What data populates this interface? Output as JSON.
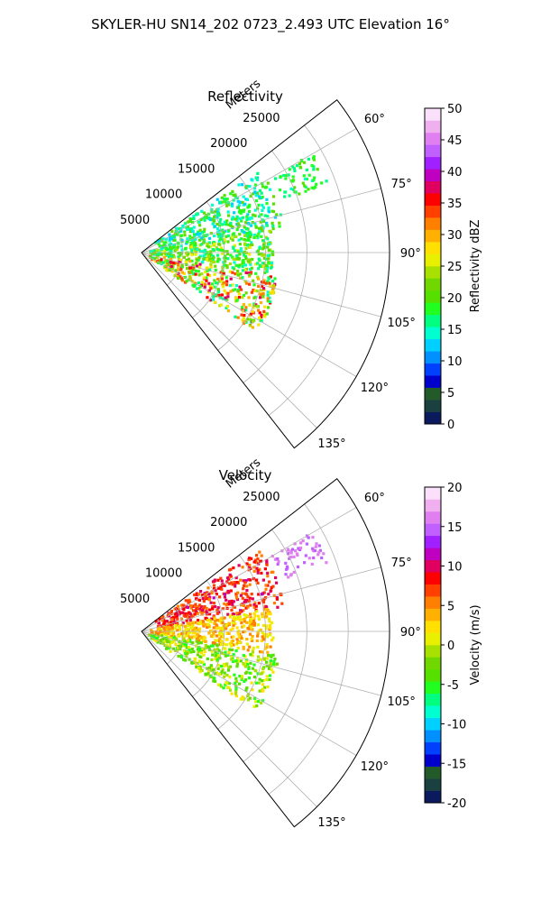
{
  "figure": {
    "title": "SKYLER-HU  SN14_202  0723_2.493 UTC Elevation 16°"
  },
  "chart_data": [
    {
      "type": "polar-sector",
      "title": "Reflectivity",
      "radial_label": "Meters",
      "theta_range_deg": [
        52,
        142
      ],
      "theta_ticks": [
        "60°",
        "75°",
        "90°",
        "105°",
        "120°",
        "135°"
      ],
      "theta_tick_values": [
        60,
        75,
        90,
        105,
        120,
        135
      ],
      "r_ticks": [
        "5000",
        "10000",
        "15000",
        "20000",
        "25000"
      ],
      "r_tick_values": [
        5000,
        10000,
        15000,
        20000,
        25000
      ],
      "r_max": 30000,
      "grid": true,
      "colorbar": {
        "label": "Reflectivity dBZ",
        "min": 0,
        "max": 50,
        "ticks": [
          "0",
          "5",
          "10",
          "15",
          "20",
          "25",
          "30",
          "35",
          "40",
          "45",
          "50"
        ],
        "tick_values": [
          0,
          5,
          10,
          15,
          20,
          25,
          30,
          35,
          40,
          45,
          50
        ],
        "colors": [
          "#0a1a5c",
          "#1a4040",
          "#235a2a",
          "#0000cc",
          "#0040ff",
          "#0090ff",
          "#00d0ff",
          "#00ffd0",
          "#00ff80",
          "#20ff20",
          "#55e000",
          "#70d800",
          "#a8e000",
          "#e8f000",
          "#ffe000",
          "#ffb000",
          "#ff8000",
          "#ff4000",
          "#ff0000",
          "#e00060",
          "#c000c0",
          "#a020ff",
          "#c060ff",
          "#e080f0",
          "#f0b0f0",
          "#fbe0fb"
        ]
      },
      "data_summary": [
        {
          "theta_range": [
            55,
            80
          ],
          "r_range": [
            2000,
            17500
          ],
          "value_range": [
            12,
            22
          ]
        },
        {
          "theta_range": [
            80,
            100
          ],
          "r_range": [
            1000,
            16000
          ],
          "value_range": [
            14,
            26
          ]
        },
        {
          "theta_range": [
            100,
            125
          ],
          "r_range": [
            1000,
            17000
          ],
          "value_range": [
            15,
            38
          ]
        },
        {
          "theta_range": [
            60,
            70
          ],
          "r_range": [
            18000,
            24000
          ],
          "value_range": [
            15,
            20
          ]
        }
      ]
    },
    {
      "type": "polar-sector",
      "title": "Velocity",
      "radial_label": "Meters",
      "theta_range_deg": [
        52,
        142
      ],
      "theta_ticks": [
        "60°",
        "75°",
        "90°",
        "105°",
        "120°",
        "135°"
      ],
      "theta_tick_values": [
        60,
        75,
        90,
        105,
        120,
        135
      ],
      "r_ticks": [
        "5000",
        "10000",
        "15000",
        "20000",
        "25000"
      ],
      "r_tick_values": [
        5000,
        10000,
        15000,
        20000,
        25000
      ],
      "r_max": 30000,
      "grid": true,
      "colorbar": {
        "label": "Velocity (m/s)",
        "min": -20,
        "max": 20,
        "ticks": [
          "-20",
          "-15",
          "-10",
          "-5",
          "0",
          "5",
          "10",
          "15",
          "20"
        ],
        "tick_values": [
          -20,
          -15,
          -10,
          -5,
          0,
          5,
          10,
          15,
          20
        ],
        "colors": [
          "#0a1a5c",
          "#1a4040",
          "#235a2a",
          "#0000cc",
          "#0040ff",
          "#0090ff",
          "#00d0ff",
          "#00ffd0",
          "#00ff80",
          "#20ff20",
          "#55e000",
          "#70d800",
          "#a8e000",
          "#e8f000",
          "#ffe000",
          "#ffb000",
          "#ff8000",
          "#ff4000",
          "#ff0000",
          "#e00060",
          "#c000c0",
          "#a020ff",
          "#c060ff",
          "#e080f0",
          "#f0b0f0",
          "#fbe0fb"
        ]
      },
      "data_summary": [
        {
          "theta_range": [
            55,
            80
          ],
          "r_range": [
            2000,
            17500
          ],
          "value_range": [
            5,
            11
          ]
        },
        {
          "theta_range": [
            80,
            100
          ],
          "r_range": [
            1000,
            16000
          ],
          "value_range": [
            0,
            6
          ]
        },
        {
          "theta_range": [
            100,
            125
          ],
          "r_range": [
            1000,
            17000
          ],
          "value_range": [
            -6,
            2
          ]
        },
        {
          "theta_range": [
            60,
            70
          ],
          "r_range": [
            18000,
            24000
          ],
          "value_range": [
            14,
            17
          ]
        }
      ]
    }
  ]
}
